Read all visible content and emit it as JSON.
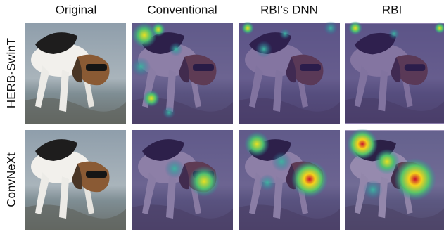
{
  "figure": {
    "columns": [
      "Original",
      "Conventional",
      "RBI’s DNN",
      "RBI"
    ],
    "rows": [
      "HERB-SwinT",
      "ConvNeXt"
    ]
  }
}
